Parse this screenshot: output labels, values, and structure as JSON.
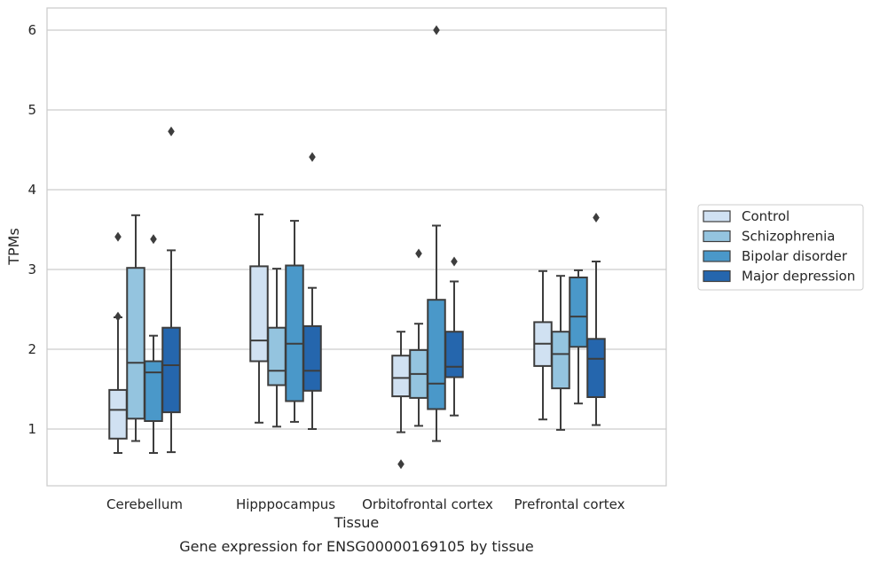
{
  "chart_data": {
    "type": "boxplot",
    "caption": "Gene expression for ENSG00000169105 by tissue",
    "xlabel": "Tissue",
    "ylabel": "TPMs",
    "ylim": [
      0.3,
      6.3
    ],
    "yticks": [
      1,
      2,
      3,
      4,
      5,
      6
    ],
    "grid": true,
    "legend_position": "right",
    "categories": [
      "Cerebellum",
      "Hipppocampus",
      "Orbitofrontal cortex",
      "Prefrontal cortex"
    ],
    "series": [
      {
        "name": "Control",
        "color": "#d0e1f2",
        "boxes": [
          {
            "whisker_low": 0.7,
            "q1": 0.88,
            "median": 1.24,
            "q3": 1.49,
            "whisker_high": 2.4,
            "outliers": [
              3.41,
              2.41
            ]
          },
          {
            "whisker_low": 1.08,
            "q1": 1.85,
            "median": 2.11,
            "q3": 3.04,
            "whisker_high": 3.69,
            "outliers": []
          },
          {
            "whisker_low": 0.96,
            "q1": 1.41,
            "median": 1.64,
            "q3": 1.92,
            "whisker_high": 2.22,
            "outliers": [
              0.56
            ]
          },
          {
            "whisker_low": 1.12,
            "q1": 1.79,
            "median": 2.07,
            "q3": 2.34,
            "whisker_high": 2.98,
            "outliers": []
          }
        ]
      },
      {
        "name": "Schizophrenia",
        "color": "#94c4df",
        "boxes": [
          {
            "whisker_low": 0.85,
            "q1": 1.13,
            "median": 1.83,
            "q3": 3.02,
            "whisker_high": 3.68,
            "outliers": []
          },
          {
            "whisker_low": 1.03,
            "q1": 1.55,
            "median": 1.73,
            "q3": 2.27,
            "whisker_high": 3.01,
            "outliers": []
          },
          {
            "whisker_low": 1.04,
            "q1": 1.39,
            "median": 1.69,
            "q3": 1.99,
            "whisker_high": 2.32,
            "outliers": [
              3.2
            ]
          },
          {
            "whisker_low": 0.99,
            "q1": 1.51,
            "median": 1.94,
            "q3": 2.22,
            "whisker_high": 2.92,
            "outliers": []
          }
        ]
      },
      {
        "name": "Bipolar disorder",
        "color": "#4a98c9",
        "boxes": [
          {
            "whisker_low": 0.7,
            "q1": 1.1,
            "median": 1.71,
            "q3": 1.85,
            "whisker_high": 2.17,
            "outliers": [
              3.38
            ]
          },
          {
            "whisker_low": 1.09,
            "q1": 1.35,
            "median": 2.07,
            "q3": 3.05,
            "whisker_high": 3.61,
            "outliers": []
          },
          {
            "whisker_low": 0.85,
            "q1": 1.25,
            "median": 1.57,
            "q3": 2.62,
            "whisker_high": 3.55,
            "outliers": [
              6.0
            ]
          },
          {
            "whisker_low": 1.32,
            "q1": 2.03,
            "median": 2.41,
            "q3": 2.9,
            "whisker_high": 2.99,
            "outliers": []
          }
        ]
      },
      {
        "name": "Major depression",
        "color": "#2566ad",
        "boxes": [
          {
            "whisker_low": 0.71,
            "q1": 1.21,
            "median": 1.8,
            "q3": 2.27,
            "whisker_high": 3.24,
            "outliers": [
              4.73
            ]
          },
          {
            "whisker_low": 1.0,
            "q1": 1.48,
            "median": 1.73,
            "q3": 2.29,
            "whisker_high": 2.77,
            "outliers": [
              4.41
            ]
          },
          {
            "whisker_low": 1.17,
            "q1": 1.65,
            "median": 1.78,
            "q3": 2.22,
            "whisker_high": 2.85,
            "outliers": [
              3.1
            ]
          },
          {
            "whisker_low": 1.05,
            "q1": 1.4,
            "median": 1.88,
            "q3": 2.13,
            "whisker_high": 3.1,
            "outliers": [
              3.65
            ]
          }
        ]
      }
    ]
  }
}
